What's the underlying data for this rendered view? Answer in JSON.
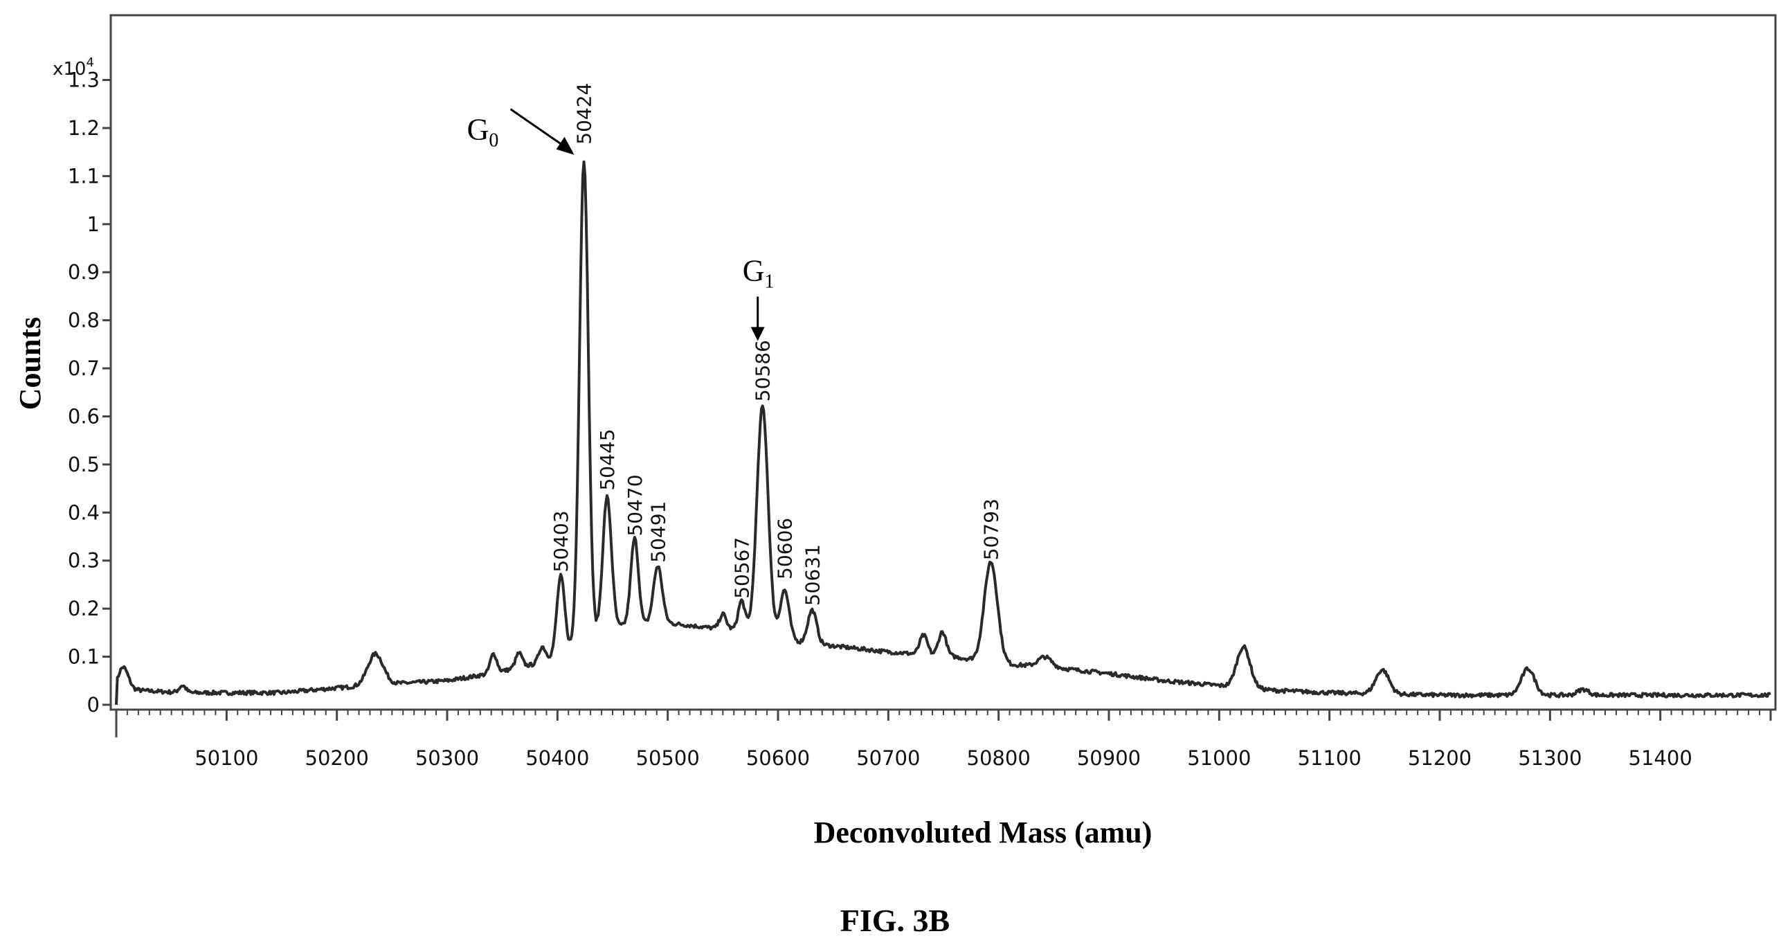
{
  "chart_data": {
    "type": "line",
    "xlabel": "Deconvoluted Mass (amu)",
    "ylabel": "Counts",
    "y_multiplier_label": "x10",
    "y_multiplier_exponent": "4",
    "xlim": [
      50000,
      51500
    ],
    "ylim": [
      0,
      1.38
    ],
    "x_ticks": [
      50100,
      50200,
      50300,
      50400,
      50500,
      50600,
      50700,
      50800,
      50900,
      51000,
      51100,
      51200,
      51300,
      51400
    ],
    "y_ticks": [
      {
        "value": 0,
        "label": "0"
      },
      {
        "value": 0.1,
        "label": "0.1"
      },
      {
        "value": 0.2,
        "label": "0.2"
      },
      {
        "value": 0.3,
        "label": "0.3"
      },
      {
        "value": 0.4,
        "label": "0.4"
      },
      {
        "value": 0.5,
        "label": "0.5"
      },
      {
        "value": 0.6,
        "label": "0.6"
      },
      {
        "value": 0.7,
        "label": "0.7"
      },
      {
        "value": 0.8,
        "label": "0.8"
      },
      {
        "value": 0.9,
        "label": "0.9"
      },
      {
        "value": 1.0,
        "label": "1"
      },
      {
        "value": 1.1,
        "label": "1.1"
      },
      {
        "value": 1.2,
        "label": "1.2"
      },
      {
        "value": 1.3,
        "label": "1.3"
      }
    ],
    "baseline": [
      [
        50000,
        0.02
      ],
      [
        50020,
        0.03
      ],
      [
        50060,
        0.025
      ],
      [
        50100,
        0.025
      ],
      [
        50150,
        0.025
      ],
      [
        50200,
        0.035
      ],
      [
        50260,
        0.045
      ],
      [
        50300,
        0.05
      ],
      [
        50340,
        0.065
      ],
      [
        50380,
        0.085
      ],
      [
        50405,
        0.11
      ],
      [
        50430,
        0.14
      ],
      [
        50460,
        0.165
      ],
      [
        50500,
        0.17
      ],
      [
        50540,
        0.16
      ],
      [
        50580,
        0.155
      ],
      [
        50620,
        0.13
      ],
      [
        50660,
        0.12
      ],
      [
        50700,
        0.11
      ],
      [
        50760,
        0.1
      ],
      [
        50800,
        0.085
      ],
      [
        50840,
        0.08
      ],
      [
        50900,
        0.065
      ],
      [
        50950,
        0.05
      ],
      [
        51000,
        0.04
      ],
      [
        51050,
        0.03
      ],
      [
        51100,
        0.025
      ],
      [
        51200,
        0.02
      ],
      [
        51300,
        0.02
      ],
      [
        51400,
        0.02
      ],
      [
        51500,
        0.02
      ]
    ],
    "peaks": [
      {
        "x": 50006,
        "height": 0.055,
        "width": 5
      },
      {
        "x": 50060,
        "height": 0.015,
        "width": 3
      },
      {
        "x": 50235,
        "height": 0.065,
        "width": 7
      },
      {
        "x": 50342,
        "height": 0.04,
        "width": 3
      },
      {
        "x": 50365,
        "height": 0.03,
        "width": 3
      },
      {
        "x": 50386,
        "height": 0.03,
        "width": 3
      },
      {
        "x": 50403,
        "height": 0.16,
        "width": 3.5
      },
      {
        "x": 50424,
        "height": 1.0,
        "width": 4
      },
      {
        "x": 50445,
        "height": 0.28,
        "width": 4
      },
      {
        "x": 50470,
        "height": 0.18,
        "width": 3.5
      },
      {
        "x": 50491,
        "height": 0.12,
        "width": 4
      },
      {
        "x": 50550,
        "height": 0.03,
        "width": 3
      },
      {
        "x": 50567,
        "height": 0.06,
        "width": 3
      },
      {
        "x": 50586,
        "height": 0.47,
        "width": 5
      },
      {
        "x": 50606,
        "height": 0.1,
        "width": 4
      },
      {
        "x": 50631,
        "height": 0.07,
        "width": 4
      },
      {
        "x": 50732,
        "height": 0.04,
        "width": 3.5
      },
      {
        "x": 50749,
        "height": 0.05,
        "width": 3.5
      },
      {
        "x": 50793,
        "height": 0.21,
        "width": 6
      },
      {
        "x": 50842,
        "height": 0.02,
        "width": 6
      },
      {
        "x": 51022,
        "height": 0.085,
        "width": 6
      },
      {
        "x": 51148,
        "height": 0.05,
        "width": 6
      },
      {
        "x": 51280,
        "height": 0.055,
        "width": 6
      },
      {
        "x": 51330,
        "height": 0.012,
        "width": 5
      }
    ],
    "peak_labels": [
      {
        "text": "50403",
        "x": 50403,
        "y": 0.27
      },
      {
        "text": "50424",
        "x": 50424,
        "y": 1.16
      },
      {
        "text": "50445",
        "x": 50445,
        "y": 0.44
      },
      {
        "text": "50470",
        "x": 50470,
        "y": 0.345
      },
      {
        "text": "50491",
        "x": 50491,
        "y": 0.29
      },
      {
        "text": "50567",
        "x": 50567,
        "y": 0.215
      },
      {
        "text": "50586",
        "x": 50586,
        "y": 0.625
      },
      {
        "text": "50606",
        "x": 50606,
        "y": 0.255
      },
      {
        "text": "50631",
        "x": 50631,
        "y": 0.2
      },
      {
        "text": "50793",
        "x": 50793,
        "y": 0.295
      }
    ],
    "annotations": [
      {
        "main": "G",
        "sub": "0",
        "target_x": 50424,
        "target_y": 1.15
      },
      {
        "main": "G",
        "sub": "1",
        "target_x": 50586,
        "target_y": 0.76
      }
    ]
  },
  "caption": "FIG. 3B"
}
